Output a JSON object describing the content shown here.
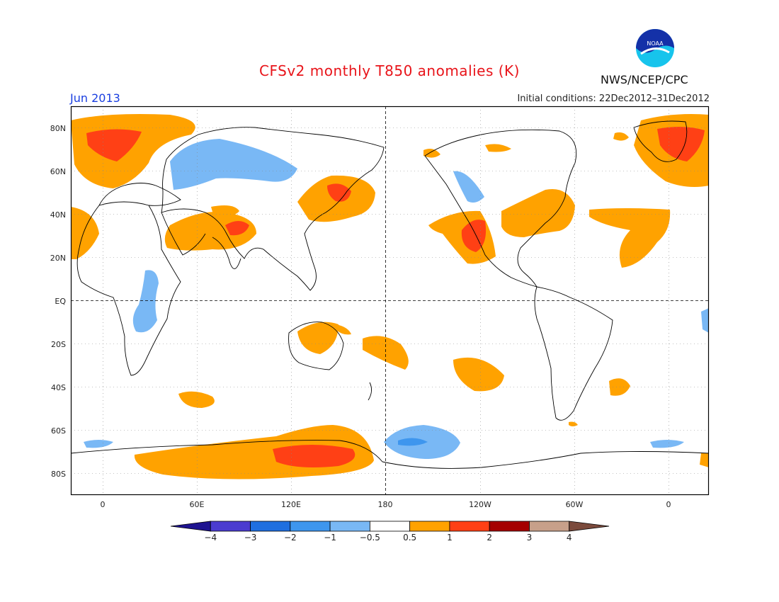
{
  "header": {
    "title": "CFSv2 monthly T850 anomalies (K)",
    "month": "Jun 2013",
    "initial_conditions": "Initial conditions: 22Dec2012–31Dec2012",
    "organization": "NWS/NCEP/CPC",
    "logo_text": "NOAA"
  },
  "map": {
    "lat_labels": [
      "80N",
      "60N",
      "40N",
      "20N",
      "EQ",
      "20S",
      "40S",
      "60S",
      "80S"
    ],
    "lon_labels": [
      "0",
      "60E",
      "120E",
      "180",
      "120W",
      "60W",
      "0"
    ]
  },
  "legend": {
    "labels": [
      "−4",
      "−3",
      "−2",
      "−1",
      "−0.5",
      "0.5",
      "1",
      "2",
      "3",
      "4"
    ],
    "colors": [
      "#1e1390",
      "#4b3cd0",
      "#1f6fe0",
      "#3e96ee",
      "#79b8f5",
      "#ffffff",
      "#ffa200",
      "#ff4015",
      "#a50000",
      "#c7a08a",
      "#7b4a3c"
    ]
  }
}
